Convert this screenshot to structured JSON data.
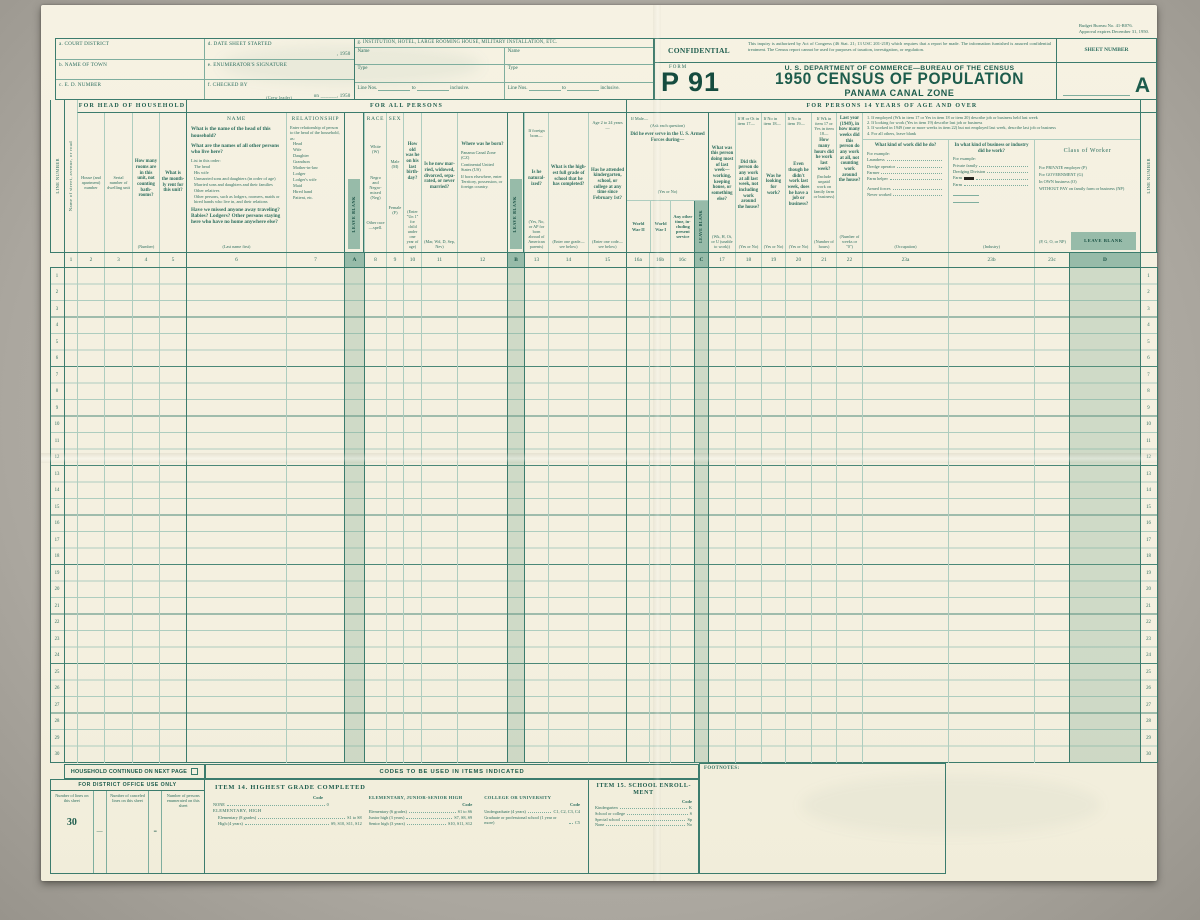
{
  "header": {
    "budget1": "Budget Bureau No. 41-R076.",
    "budget2": "Approval expires December 31, 1950.",
    "fields": {
      "a": "a. COURT DISTRICT",
      "b": "b. NAME OF TOWN",
      "c": "c. E. D. NUMBER",
      "d": "d. DATE SHEET STARTED",
      "d_year": ", 1950",
      "e": "e. ENUMERATOR'S SIGNATURE",
      "f": "f. CHECKED BY",
      "f_sub": "(Crew leader)",
      "f_on": "on",
      "f_year": ", 1950"
    },
    "institution": {
      "title": "g. INSTITUTION, HOTEL, LARGE ROOMING HOUSE, MILITARY INSTALLATION, ETC.",
      "name_label": "Name",
      "type_label": "Type",
      "line_nos_label": "Line Nos.",
      "to_label": "to",
      "inclusive_label": "inclusive."
    },
    "confidential": {
      "label": "CONFIDENTIAL",
      "text": "This inquiry is authorized by Act of Congress (46 Stat. 21; 13 USC 201-218) which requires that a report be made.  The information furnished is assured confidential treatment.  The Census report cannot be used for purposes of taxation, investigation, or regulation."
    },
    "sheet": {
      "label": "SHEET NUMBER",
      "letter": "A"
    },
    "form": {
      "label": "FORM",
      "number": "P 91"
    },
    "agency": "U. S. DEPARTMENT OF COMMERCE—BUREAU OF THE CENSUS",
    "title": "1950 CENSUS OF POPULATION",
    "subtitle": "PANAMA CANAL ZONE"
  },
  "grid": {
    "bands": {
      "head": "FOR HEAD OF HOUSEHOLD",
      "all": "FOR ALL PERSONS",
      "p14": "FOR PERSONS 14 YEARS OF AGE AND OVER"
    },
    "leave_blank": "LEAVE BLANK",
    "line_number_label": "LINE NUMBER",
    "columns": {
      "c1": "Name of street, avenue, or road",
      "c2": "House (and apart­ment) number",
      "c3": "Serial number of dwelling unit",
      "c4": {
        "q": "How many rooms are in this unit, not count­ing bath­rooms?",
        "hint": "(Number)"
      },
      "c5": {
        "q": "What is the month­ly rent for this unit?"
      },
      "c6": {
        "title": "NAME",
        "q1": "What is the name of the head of this household?",
        "q2": "What are the names of all other persons who live here?",
        "list_intro": "List in this order:",
        "list": [
          "The head",
          "His wife",
          "Unmarried sons and daughters (in order of age)",
          "Married sons and daughters and their families",
          "Other relatives",
          "Other persons, such as lodgers, roomers, maids or hired hands who live in, and their relations"
        ],
        "q3": "Have we missed anyone away traveling?  Babies?  Lodgers?  Other persons staying here who have no home anywhere else?",
        "hint": "(Last name first)"
      },
      "c7": {
        "title": "RELATIONSHIP",
        "intro": "Enter relationship of per­son to the head of the household, as:",
        "list": [
          "Head",
          "Wife",
          "Daughter",
          "Grandson",
          "Mother-in-law",
          "Lodger",
          "Lodger's wife",
          "Maid",
          "Hired hand",
          "Patient, etc."
        ]
      },
      "c8": {
        "title": "RACE",
        "list": [
          "White (W)",
          "Negro and Negro-mixed (Neg)",
          "Other race—spell."
        ]
      },
      "c9": {
        "title": "SEX",
        "list": [
          "Male (M)",
          "Fe­male (F)"
        ]
      },
      "c10": {
        "q": "How old was he on his last birth­day?",
        "hint": "(Enter \"Un 1\" for child under one year of age)"
      },
      "c11": {
        "q": "Is he now mar­ried, wid­owed, di­vorced, sepa­rated, or never mar­ried?",
        "hint": "(Mar, Wd, D, Sep, Nev)"
      },
      "c12": {
        "q": "Where was he born?",
        "notes": [
          "Panama Canal Zone (CZ)",
          "Continental United States (US)",
          "If born elsewhere, enter Territory, possession, or foreign country."
        ]
      },
      "c13": {
        "pre": "If foreign born—",
        "q": "Is he natural­ized?",
        "hint": "(Yes, No, or AP for born abroad of American parents)"
      },
      "c14": {
        "q": "What is the high­est full grade of school that he has com­pleted?",
        "hint": "(Enter one grade—see below)"
      },
      "c15": {
        "pre": "Age 2 to 24 years—",
        "q": "Has he attended kinder­garten, school, or college at any time since February 1st?",
        "hint": "(Enter one code—see below)"
      },
      "c16": {
        "pre": "If Male—",
        "pre2": "(Ask each question)",
        "q": "Did he ever serve in the U. S. Armed Forces during—",
        "hint": "(Yes or No)",
        "subs": [
          "World War II",
          "World War I",
          "Any other time, in­cluding present service"
        ]
      },
      "c17": {
        "q": "What was this person doing most of last week—work­ing, keep­ing house, or some­thing else?",
        "hint": "(Wk, H, Ot, or U (unable to work))"
      },
      "c18": {
        "pre": "If H or Ot in item 17—",
        "q": "Did this person do any work at all last week, not in­clud­ing work around the house?",
        "hint": "(Yes or No)"
      },
      "c19": {
        "pre": "If No in item 18—",
        "q": "Was he look­ing for work?",
        "hint": "(Yes or No)"
      },
      "c20": {
        "pre": "If No in item 19—",
        "q": "Even though he didn't work last week, does he have a job or busi­ness?",
        "hint": "(Yes or No)"
      },
      "c21": {
        "pre": "If Wk in item 17 or Yes in item 18—",
        "q": "How many hours did he work last week?",
        "note": "(Include unpaid work on family farm or business)",
        "hint": "(Number of hours)"
      },
      "c22": {
        "q": "Last year (1949), in how many weeks did this person do any work at all, not count­ing work around the house?",
        "hint": "(Number of weeks or \"0\")"
      },
      "c23": {
        "notes": [
          "1.  If employed (Wk in item 17 or Yes in item 18 or item 20) describe job or business held last week",
          "2.  If looking for work (Yes in item 19) describe last job or business",
          "3.  If worked in 1949 (one or more weeks in item 22) but not employed last week, describe last job or business",
          "4.  For all others, leave blank"
        ]
      },
      "c23a": {
        "q": "What kind of work did he do?",
        "ex_intro": "For example:",
        "examples": [
          "Laundress",
          "Dredge operator",
          "Farmer",
          "Farm helper",
          "Armed forces",
          "Never worked"
        ],
        "hint": "(Occupation)"
      },
      "c23b": {
        "q": "In what kind of business or industry did he work?",
        "ex_intro": "For example:",
        "examples": [
          "Private family",
          "Dredging Division",
          "Farm",
          "Farm"
        ],
        "hint": "(Industry)"
      },
      "c23c": {
        "title": "Class of Worker",
        "list": [
          "For PRIVATE employer (P)",
          "For GOVERNMENT (G)",
          "In OWN business (O)",
          "WITHOUT PAY on family farm or business (NP)"
        ],
        "hint": "(P, G, O, or NP)"
      }
    },
    "column_numbers": [
      "1",
      "2",
      "3",
      "4",
      "5",
      "6",
      "7",
      "A",
      "8",
      "9",
      "10",
      "11",
      "12",
      "B",
      "13",
      "14",
      "15",
      "16a",
      "16b",
      "16c",
      "C",
      "17",
      "18",
      "19",
      "20",
      "21",
      "22",
      "23a",
      "23b",
      "23c",
      "D"
    ],
    "line_numbers": [
      "1",
      "2",
      "3",
      "4",
      "5",
      "6",
      "7",
      "8",
      "9",
      "10",
      "11",
      "12",
      "13",
      "14",
      "15",
      "16",
      "17",
      "18",
      "19",
      "20",
      "21",
      "22",
      "23",
      "24",
      "25",
      "26",
      "27",
      "28",
      "29",
      "30"
    ]
  },
  "bottom": {
    "continued": "HOUSEHOLD CONTINUED ON NEXT PAGE",
    "codes_band": "CODES TO BE USED IN ITEMS INDICATED",
    "footnotes": "FOOTNOTES:",
    "district": {
      "title": "FOR DISTRICT OFFICE USE ONLY",
      "c1_label": "Number of lines on this sheet",
      "c1_value": "30",
      "sep1": "—",
      "c2_label": "Number of can­celed lines on this sheet",
      "sep2": "≡",
      "c3_label": "Number of per­sons enumer­ated on this sheet"
    },
    "item14": {
      "title": "ITEM 14.  HIGHEST GRADE COMPLETED",
      "code": "Code",
      "none_label": "NONE",
      "none_code": "0",
      "g1": "ELEMENTARY, HIGH",
      "g1r1": [
        "Elementary (8 grades)",
        "S1 to S8"
      ],
      "g1r2": [
        "High (4 years)",
        "S9, S10, S11, S12"
      ],
      "c2_title": "ELEMENTARY, JUNIOR-SENIOR HIGH",
      "c2r1": [
        "Elementary (6 grades)",
        "S1 to S6"
      ],
      "c2r2": [
        "Junior high (3 years)",
        "S7, S8, S9"
      ],
      "c2r3": [
        "Senior high (3 years)",
        "S10, S11, S12"
      ],
      "c3_title": "COLLEGE OR UNIVERSITY",
      "c3r1": [
        "Undergraduate (4 years)",
        "C1, C2, C3, C4"
      ],
      "c3r2": [
        "Graduate or professional school (1 year or more)",
        "C5"
      ]
    },
    "item15": {
      "title": "ITEM 15.  SCHOOL ENROLL­MENT",
      "code": "Code",
      "r1": [
        "Kindergarten",
        "K"
      ],
      "r2": [
        "School or college",
        "S"
      ],
      "r3": [
        "Special school",
        "Sp"
      ],
      "r4": [
        "None",
        "No"
      ]
    }
  }
}
